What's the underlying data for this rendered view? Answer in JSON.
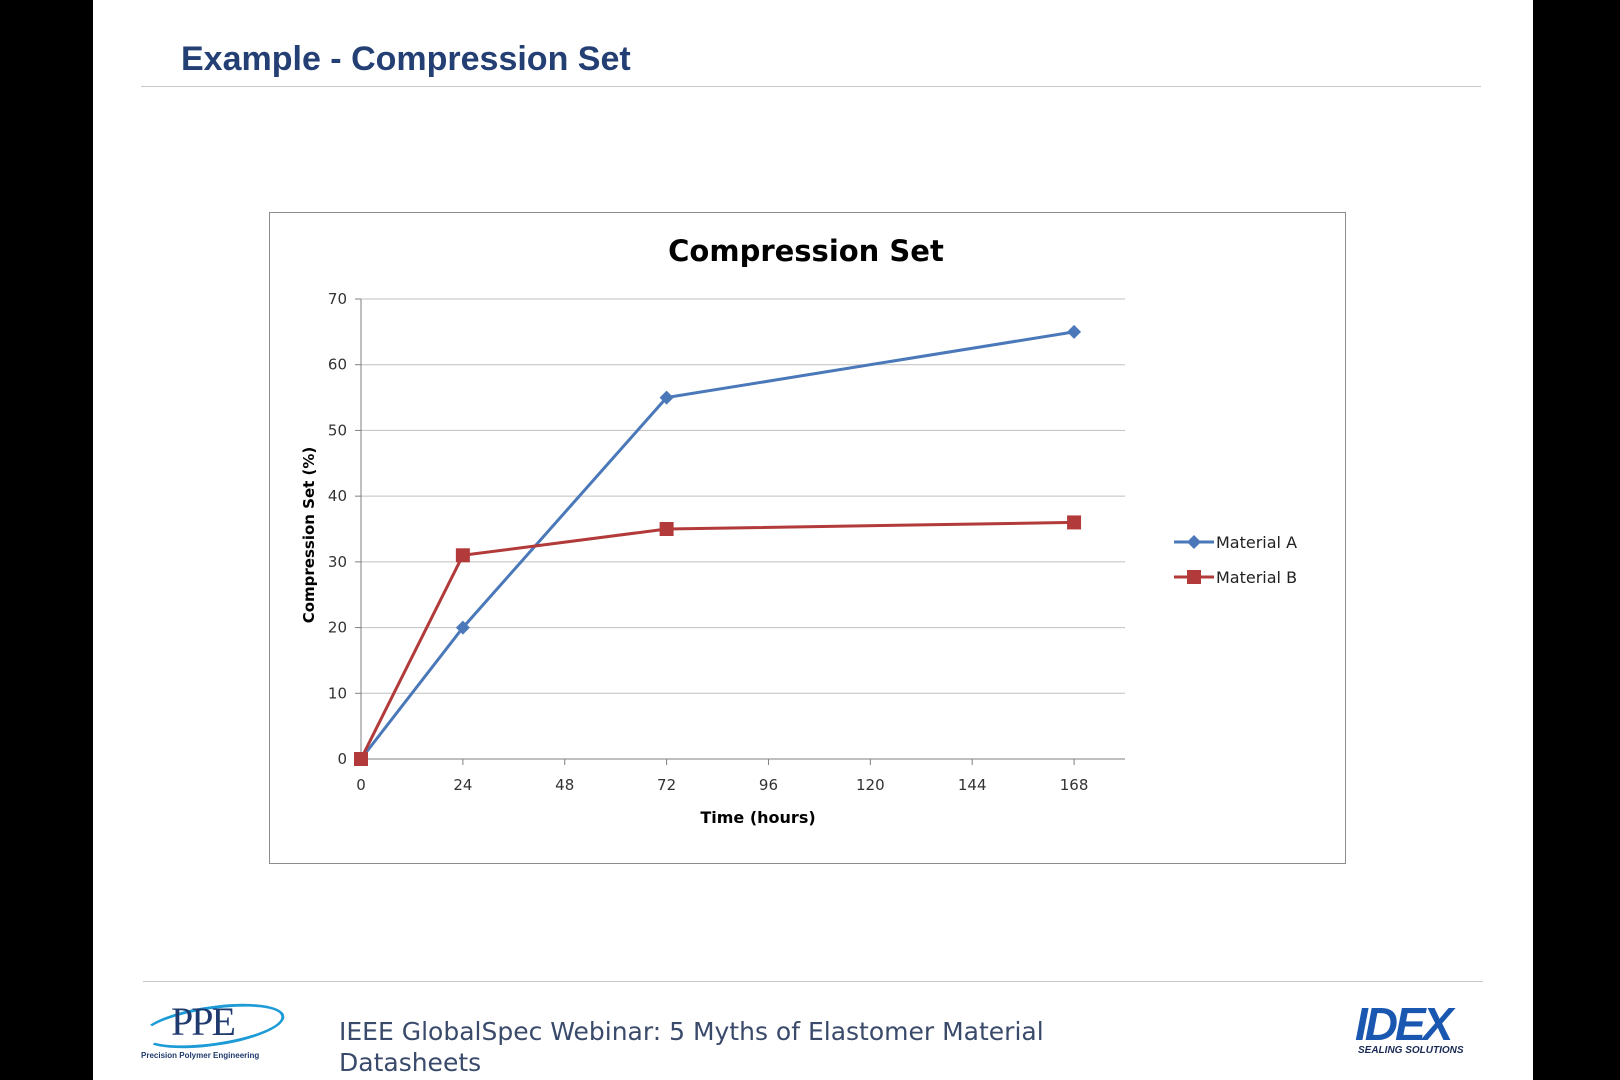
{
  "slide": {
    "title": "Example - Compression Set",
    "footer_text": "IEEE GlobalSpec Webinar: 5 Myths of Elastomer Material Datasheets",
    "ppe_logo": {
      "letters": "PPE",
      "tagline": "Precision Polymer Engineering"
    },
    "idex_logo": {
      "word": "IDEX",
      "tagline": "SEALING SOLUTIONS"
    }
  },
  "chart_data": {
    "type": "line",
    "title": "Compression Set",
    "xlabel": "Time (hours)",
    "ylabel": "Compression Set (%)",
    "x": [
      0,
      24,
      72,
      168
    ],
    "xticks": [
      0,
      24,
      48,
      72,
      96,
      120,
      144,
      168
    ],
    "yticks": [
      0,
      10,
      20,
      30,
      40,
      50,
      60,
      70
    ],
    "xlim": [
      0,
      180
    ],
    "ylim": [
      0,
      70
    ],
    "grid": "horizontal",
    "legend_position": "right",
    "series": [
      {
        "name": "Material A",
        "values": [
          0,
          20,
          55,
          65
        ],
        "color": "#4a78b8",
        "marker": "diamond"
      },
      {
        "name": "Material B",
        "values": [
          0,
          31,
          35,
          36
        ],
        "color": "#b23a3a",
        "marker": "square"
      }
    ]
  }
}
